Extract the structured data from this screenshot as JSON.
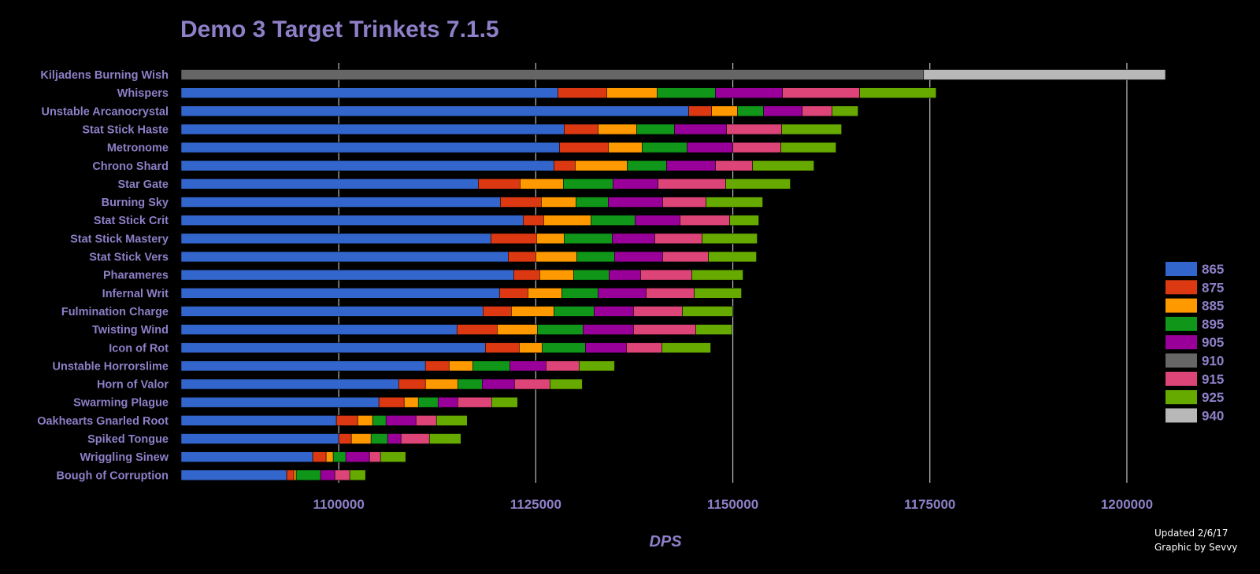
{
  "colors": {
    "background": "#000000",
    "text": "#8e7fc7",
    "grid": "#bdbdbd",
    "footer": "#ffffff"
  },
  "footer": {
    "updated": "Updated 2/6/17",
    "credit": "Graphic by Sevvy"
  },
  "chart_data": {
    "type": "bar",
    "orientation": "horizontal",
    "stacked": true,
    "title": "Demo 3 Target Trinkets 7.1.5",
    "xlabel": "DPS",
    "ylabel": "",
    "xlim": [
      1080000,
      1206500
    ],
    "xticks": [
      1100000,
      1125000,
      1150000,
      1175000,
      1200000
    ],
    "xtick_labels": [
      "1100000",
      "1125000",
      "1150000",
      "1175000",
      "1200000"
    ],
    "grid": "vertical",
    "legend_position": "right",
    "values_are_cumulative": true,
    "series": [
      {
        "name": "865",
        "color": "#3366cc"
      },
      {
        "name": "875",
        "color": "#dc3912"
      },
      {
        "name": "885",
        "color": "#ff9900"
      },
      {
        "name": "895",
        "color": "#109618"
      },
      {
        "name": "905",
        "color": "#990099"
      },
      {
        "name": "910",
        "color": "#666666"
      },
      {
        "name": "915",
        "color": "#dd4477"
      },
      {
        "name": "925",
        "color": "#66aa00"
      },
      {
        "name": "940",
        "color": "#b8b8b8"
      }
    ],
    "categories": [
      {
        "name": "Kiljadens Burning Wish",
        "cumulative": {
          "910": 1174200,
          "940": 1204900
        }
      },
      {
        "name": "Whispers",
        "cumulative": {
          "865": 1127800,
          "875": 1134000,
          "885": 1140400,
          "895": 1147800,
          "905": 1156300,
          "915": 1166100,
          "925": 1175800
        }
      },
      {
        "name": "Unstable Arcanocrystal",
        "cumulative": {
          "865": 1144400,
          "875": 1147300,
          "885": 1150600,
          "895": 1153900,
          "905": 1158800,
          "915": 1162600,
          "925": 1165900
        }
      },
      {
        "name": "Stat Stick Haste",
        "cumulative": {
          "865": 1128600,
          "875": 1132900,
          "885": 1137800,
          "895": 1142600,
          "905": 1149200,
          "915": 1156200,
          "925": 1163800
        }
      },
      {
        "name": "Metronome",
        "cumulative": {
          "865": 1128000,
          "875": 1134200,
          "885": 1138500,
          "895": 1144200,
          "905": 1150000,
          "915": 1156100,
          "925": 1163100
        }
      },
      {
        "name": "Chrono Shard",
        "cumulative": {
          "865": 1127300,
          "875": 1130000,
          "885": 1136600,
          "895": 1141600,
          "905": 1147800,
          "915": 1152500,
          "925": 1160300
        }
      },
      {
        "name": "Star Gate",
        "cumulative": {
          "865": 1117700,
          "875": 1123000,
          "885": 1128500,
          "895": 1134800,
          "905": 1140500,
          "915": 1149100,
          "925": 1157300
        }
      },
      {
        "name": "Burning Sky",
        "cumulative": {
          "865": 1120500,
          "875": 1125700,
          "885": 1130100,
          "895": 1134200,
          "905": 1141100,
          "915": 1146600,
          "925": 1153800
        }
      },
      {
        "name": "Stat Stick Crit",
        "cumulative": {
          "865": 1123400,
          "875": 1126000,
          "885": 1132000,
          "895": 1137600,
          "905": 1143300,
          "915": 1149600,
          "925": 1153300
        }
      },
      {
        "name": "Stat Stick Mastery",
        "cumulative": {
          "865": 1119300,
          "875": 1125100,
          "885": 1128600,
          "895": 1134700,
          "905": 1140100,
          "915": 1146100,
          "925": 1153100
        }
      },
      {
        "name": "Stat Stick Vers",
        "cumulative": {
          "865": 1121500,
          "875": 1125000,
          "885": 1130200,
          "895": 1135000,
          "905": 1141100,
          "915": 1146900,
          "925": 1153000
        }
      },
      {
        "name": "Pharameres",
        "cumulative": {
          "865": 1122200,
          "875": 1125500,
          "885": 1129800,
          "895": 1134300,
          "905": 1138300,
          "915": 1144800,
          "925": 1151300
        }
      },
      {
        "name": "Infernal Writ",
        "cumulative": {
          "865": 1120400,
          "875": 1124000,
          "885": 1128300,
          "895": 1132900,
          "905": 1139000,
          "915": 1145100,
          "925": 1151100
        }
      },
      {
        "name": "Fulmination Charge",
        "cumulative": {
          "865": 1118300,
          "875": 1121900,
          "885": 1127300,
          "895": 1132400,
          "905": 1137400,
          "915": 1143600,
          "925": 1150000
        }
      },
      {
        "name": "Twisting Wind",
        "cumulative": {
          "865": 1115000,
          "875": 1120100,
          "885": 1125200,
          "895": 1131000,
          "905": 1137400,
          "915": 1145300,
          "925": 1149900
        }
      },
      {
        "name": "Icon of Rot",
        "cumulative": {
          "865": 1118600,
          "875": 1122900,
          "885": 1125800,
          "895": 1131300,
          "905": 1136500,
          "915": 1141000,
          "925": 1147200
        }
      },
      {
        "name": "Unstable Horrorslime",
        "cumulative": {
          "865": 1111000,
          "875": 1114000,
          "885": 1117000,
          "895": 1121700,
          "905": 1126300,
          "915": 1130500,
          "925": 1135000
        }
      },
      {
        "name": "Horn of Valor",
        "cumulative": {
          "865": 1107600,
          "875": 1111000,
          "885": 1115100,
          "895": 1118200,
          "905": 1122300,
          "915": 1126800,
          "925": 1130900
        }
      },
      {
        "name": "Swarming Plague",
        "cumulative": {
          "865": 1105100,
          "875": 1108300,
          "885": 1110100,
          "895": 1112600,
          "905": 1115100,
          "915": 1119400,
          "925": 1122700
        }
      },
      {
        "name": "Oakhearts Gnarled Root",
        "cumulative": {
          "865": 1099700,
          "875": 1102400,
          "885": 1104300,
          "895": 1106000,
          "905": 1109800,
          "915": 1112400,
          "925": 1116300
        }
      },
      {
        "name": "Spiked Tongue",
        "cumulative": {
          "865": 1100000,
          "875": 1101600,
          "885": 1104100,
          "895": 1106200,
          "905": 1107900,
          "915": 1111500,
          "925": 1115500
        }
      },
      {
        "name": "Wriggling Sinew",
        "cumulative": {
          "865": 1096700,
          "875": 1098400,
          "885": 1099300,
          "895": 1100900,
          "905": 1103900,
          "915": 1105300,
          "925": 1108500
        }
      },
      {
        "name": "Bough of Corruption",
        "cumulative": {
          "865": 1093400,
          "875": 1094300,
          "885": 1094600,
          "895": 1097700,
          "905": 1099500,
          "915": 1101400,
          "925": 1103400
        }
      }
    ]
  }
}
